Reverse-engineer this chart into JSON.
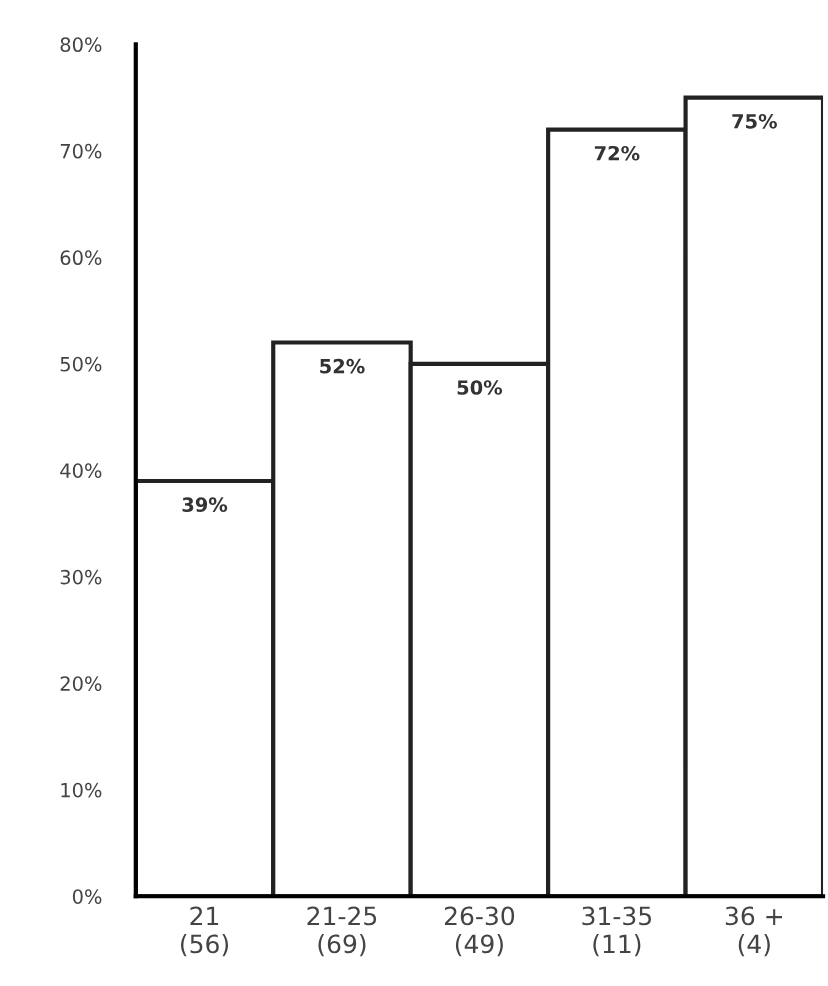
{
  "chart_data": {
    "type": "bar",
    "categories": [
      "21\n(56)",
      "21-25\n(69)",
      "26-30\n(49)",
      "31-35\n(11)",
      "36 +\n(4)"
    ],
    "values": [
      39,
      52,
      50,
      72,
      75
    ],
    "value_labels": [
      "39%",
      "52%",
      "50%",
      "72%",
      "75%"
    ],
    "color": "#ffffff",
    "ylim": [
      0,
      80
    ],
    "yticks": [
      {
        "value": 0,
        "label": "0%"
      },
      {
        "value": 10,
        "label": "10%"
      },
      {
        "value": 20,
        "label": "20%"
      },
      {
        "value": 30,
        "label": "30%"
      },
      {
        "value": 40,
        "label": "40%"
      },
      {
        "value": 50,
        "label": "50%"
      },
      {
        "value": 60,
        "label": "60%"
      },
      {
        "value": 70,
        "label": "70%"
      },
      {
        "value": 80,
        "label": "80%"
      }
    ],
    "grid": false,
    "legend": false
  }
}
